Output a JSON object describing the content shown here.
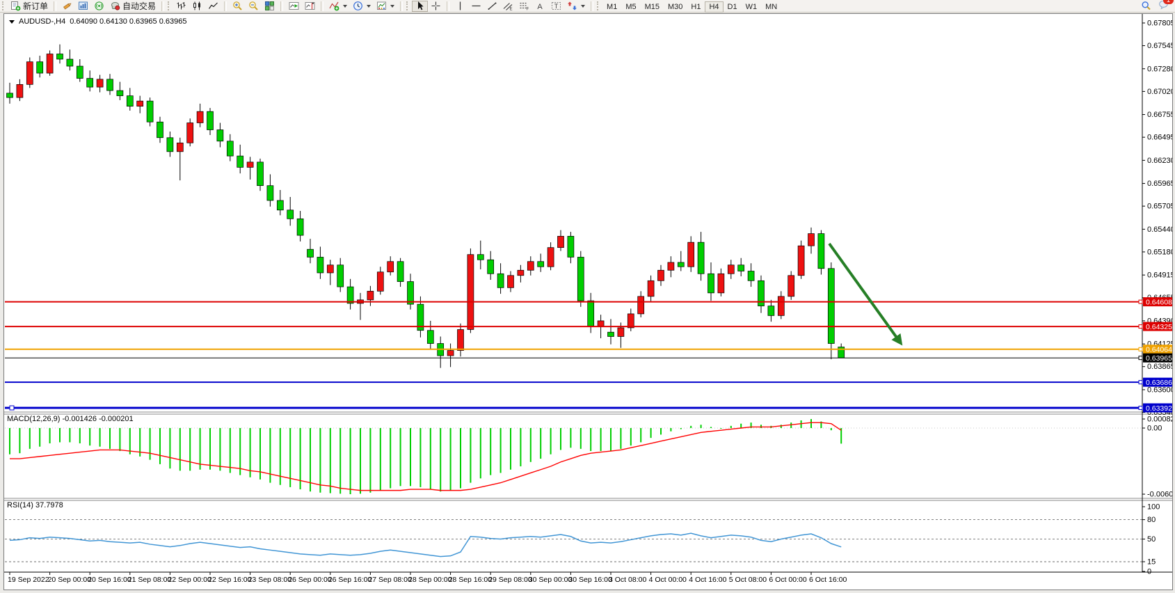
{
  "toolbar": {
    "new_order_label": "新订单",
    "autotrading_label": "自动交易",
    "timeframes": [
      "M1",
      "M5",
      "M15",
      "M30",
      "H1",
      "H4",
      "D1",
      "W1",
      "MN"
    ],
    "active_timeframe": "H4",
    "chat_badge": "1"
  },
  "chart_header": {
    "symbol": "AUDUSD-,H4",
    "ohlc": "0.64090 0.64130 0.63965 0.63965"
  },
  "price_axis": {
    "ticks": [
      "0.67805",
      "0.67545",
      "0.67280",
      "0.67020",
      "0.66755",
      "0.66495",
      "0.66230",
      "0.65965",
      "0.65705",
      "0.65440",
      "0.65180",
      "0.64915",
      "0.64655",
      "0.64390",
      "0.64125",
      "0.63865",
      "0.63600",
      "0.63340"
    ],
    "badges": [
      {
        "label": "0.64608",
        "price": 0.64608,
        "color": "#dd0000"
      },
      {
        "label": "0.64325",
        "price": 0.64325,
        "color": "#dd0000"
      },
      {
        "label": "0.64064",
        "price": 0.64064,
        "color": "#f0a200"
      },
      {
        "label": "0.63965",
        "price": 0.63965,
        "color": "#000000"
      },
      {
        "label": "0.63686",
        "price": 0.63686,
        "color": "#0000cc"
      },
      {
        "label": "0.63392",
        "price": 0.63392,
        "color": "#0000cc"
      }
    ]
  },
  "hlines": [
    {
      "price": 0.64608,
      "color": "#dd0000",
      "width": 2,
      "handle": false
    },
    {
      "price": 0.64325,
      "color": "#dd0000",
      "width": 2,
      "handle": false
    },
    {
      "price": 0.64064,
      "color": "#f0a200",
      "width": 2,
      "handle": false
    },
    {
      "price": 0.63965,
      "color": "#000000",
      "width": 1,
      "handle": false
    },
    {
      "price": 0.63686,
      "color": "#0000cc",
      "width": 2,
      "handle": false
    },
    {
      "price": 0.63392,
      "color": "#0000cc",
      "width": 3,
      "handle": true
    }
  ],
  "time_axis": [
    "19 Sep 2022",
    "20 Sep 00:00",
    "20 Sep 16:00",
    "21 Sep 08:00",
    "22 Sep 00:00",
    "22 Sep 16:00",
    "23 Sep 08:00",
    "26 Sep 00:00",
    "26 Sep 16:00",
    "27 Sep 08:00",
    "28 Sep 00:00",
    "28 Sep 16:00",
    "29 Sep 08:00",
    "30 Sep 00:00",
    "30 Sep 16:00",
    "3 Oct 08:00",
    "4 Oct 00:00",
    "4 Oct 16:00",
    "5 Oct 08:00",
    "6 Oct 00:00",
    "6 Oct 16:00"
  ],
  "indicators": {
    "macd": {
      "name": "MACD(12,26,9)",
      "values_text": "-0.001426 -0.000201",
      "axis_labels": [
        "0.00082",
        "0.00",
        "-0.006044"
      ]
    },
    "rsi": {
      "name": "RSI(14)",
      "value_text": "37.7978",
      "axis_labels": [
        "100",
        "80",
        "50",
        "15",
        "0"
      ],
      "dashed_levels": [
        80,
        50,
        15
      ]
    }
  },
  "annotation_arrow": {
    "color": "#267f26"
  },
  "colors": {
    "bull": "#ee1111",
    "bear": "#00ce00",
    "wick": "#000000",
    "macd_hist": "#00ce00",
    "macd_signal": "#ff0000",
    "rsi_line": "#4095d5"
  },
  "chart_data": {
    "type": "candlestick",
    "symbol": "AUDUSD",
    "period": "H4",
    "ohlc": [
      [
        0.67,
        0.6712,
        0.6688,
        0.6695
      ],
      [
        0.6695,
        0.6716,
        0.6691,
        0.671
      ],
      [
        0.671,
        0.6741,
        0.6706,
        0.6736
      ],
      [
        0.6736,
        0.6743,
        0.6718,
        0.6723
      ],
      [
        0.6723,
        0.6749,
        0.672,
        0.6745
      ],
      [
        0.6745,
        0.6756,
        0.6734,
        0.6739
      ],
      [
        0.6739,
        0.675,
        0.6726,
        0.6731
      ],
      [
        0.6731,
        0.6739,
        0.6713,
        0.6717
      ],
      [
        0.6717,
        0.6726,
        0.6702,
        0.6707
      ],
      [
        0.6707,
        0.6721,
        0.6701,
        0.6716
      ],
      [
        0.6716,
        0.6722,
        0.6698,
        0.6703
      ],
      [
        0.6703,
        0.6713,
        0.6692,
        0.6697
      ],
      [
        0.6697,
        0.6706,
        0.668,
        0.6685
      ],
      [
        0.6685,
        0.6697,
        0.6677,
        0.6691
      ],
      [
        0.6691,
        0.6695,
        0.6662,
        0.6667
      ],
      [
        0.6667,
        0.6673,
        0.6643,
        0.6649
      ],
      [
        0.6649,
        0.6656,
        0.6627,
        0.6633
      ],
      [
        0.6633,
        0.6649,
        0.66,
        0.6643
      ],
      [
        0.6643,
        0.6671,
        0.6639,
        0.6666
      ],
      [
        0.6666,
        0.6688,
        0.6661,
        0.6679
      ],
      [
        0.6679,
        0.6683,
        0.6652,
        0.6658
      ],
      [
        0.6658,
        0.6666,
        0.6638,
        0.6645
      ],
      [
        0.6645,
        0.6653,
        0.6622,
        0.6628
      ],
      [
        0.6628,
        0.6641,
        0.6608,
        0.6615
      ],
      [
        0.6615,
        0.6627,
        0.6601,
        0.6621
      ],
      [
        0.6621,
        0.6625,
        0.6588,
        0.6594
      ],
      [
        0.6594,
        0.6607,
        0.657,
        0.6577
      ],
      [
        0.6577,
        0.6589,
        0.656,
        0.6566
      ],
      [
        0.6566,
        0.6581,
        0.6548,
        0.6556
      ],
      [
        0.6556,
        0.6565,
        0.653,
        0.6537
      ],
      [
        0.6521,
        0.6533,
        0.6505,
        0.6512
      ],
      [
        0.6512,
        0.6524,
        0.6487,
        0.6494
      ],
      [
        0.6494,
        0.6509,
        0.648,
        0.6503
      ],
      [
        0.6503,
        0.6511,
        0.6472,
        0.6478
      ],
      [
        0.6478,
        0.6487,
        0.6452,
        0.6459
      ],
      [
        0.6459,
        0.6471,
        0.644,
        0.6463
      ],
      [
        0.6463,
        0.6479,
        0.6456,
        0.6473
      ],
      [
        0.6473,
        0.6501,
        0.6469,
        0.6495
      ],
      [
        0.6495,
        0.6513,
        0.6491,
        0.6507
      ],
      [
        0.6507,
        0.6511,
        0.6478,
        0.6484
      ],
      [
        0.6484,
        0.6493,
        0.6452,
        0.6458
      ],
      [
        0.6458,
        0.6467,
        0.642,
        0.6428
      ],
      [
        0.6428,
        0.6439,
        0.6406,
        0.6413
      ],
      [
        0.6413,
        0.6421,
        0.6385,
        0.6399
      ],
      [
        0.6399,
        0.6413,
        0.6386,
        0.6405
      ],
      [
        0.6405,
        0.6436,
        0.6398,
        0.6429
      ],
      [
        0.6429,
        0.6522,
        0.6425,
        0.6515
      ],
      [
        0.6515,
        0.6531,
        0.6498,
        0.6509
      ],
      [
        0.6509,
        0.6519,
        0.6486,
        0.6493
      ],
      [
        0.6493,
        0.6505,
        0.647,
        0.6477
      ],
      [
        0.6477,
        0.6496,
        0.6472,
        0.6491
      ],
      [
        0.6491,
        0.6503,
        0.6483,
        0.6497
      ],
      [
        0.6497,
        0.6513,
        0.6491,
        0.6507
      ],
      [
        0.6507,
        0.6516,
        0.6495,
        0.6501
      ],
      [
        0.6501,
        0.6529,
        0.6497,
        0.6523
      ],
      [
        0.6523,
        0.6543,
        0.6519,
        0.6536
      ],
      [
        0.6536,
        0.6541,
        0.6505,
        0.6512
      ],
      [
        0.6512,
        0.6519,
        0.6455,
        0.6462
      ],
      [
        0.6462,
        0.6471,
        0.6425,
        0.6433
      ],
      [
        0.6433,
        0.6446,
        0.6419,
        0.6439
      ],
      [
        0.6426,
        0.6441,
        0.6412,
        0.6421
      ],
      [
        0.6421,
        0.6437,
        0.6408,
        0.6431
      ],
      [
        0.6431,
        0.6453,
        0.6427,
        0.6447
      ],
      [
        0.6447,
        0.6473,
        0.6443,
        0.6467
      ],
      [
        0.6467,
        0.6491,
        0.6461,
        0.6485
      ],
      [
        0.6485,
        0.6503,
        0.6479,
        0.6497
      ],
      [
        0.6497,
        0.6513,
        0.6489,
        0.6506
      ],
      [
        0.6506,
        0.6519,
        0.6496,
        0.6501
      ],
      [
        0.6501,
        0.6536,
        0.6495,
        0.6529
      ],
      [
        0.6529,
        0.6541,
        0.6485,
        0.6493
      ],
      [
        0.6493,
        0.6506,
        0.6462,
        0.6471
      ],
      [
        0.6471,
        0.6499,
        0.6467,
        0.6493
      ],
      [
        0.6493,
        0.6509,
        0.6487,
        0.6503
      ],
      [
        0.6503,
        0.6511,
        0.649,
        0.6496
      ],
      [
        0.6496,
        0.6505,
        0.6478,
        0.6485
      ],
      [
        0.6485,
        0.6491,
        0.6448,
        0.6456
      ],
      [
        0.6456,
        0.6463,
        0.6438,
        0.6445
      ],
      [
        0.6445,
        0.6473,
        0.6441,
        0.6467
      ],
      [
        0.6467,
        0.6496,
        0.6463,
        0.6491
      ],
      [
        0.6491,
        0.6531,
        0.6487,
        0.6525
      ],
      [
        0.6525,
        0.6546,
        0.6516,
        0.6539
      ],
      [
        0.6539,
        0.6543,
        0.6492,
        0.6499
      ],
      [
        0.6499,
        0.6506,
        0.6395,
        0.6413
      ],
      [
        0.6409,
        0.6413,
        0.63965,
        0.63965
      ]
    ],
    "macd_histogram": [
      -0.0024,
      -0.0023,
      -0.0019,
      -0.0017,
      -0.0014,
      -0.0013,
      -0.0013,
      -0.0014,
      -0.0016,
      -0.0017,
      -0.0019,
      -0.0021,
      -0.0024,
      -0.0026,
      -0.0029,
      -0.0033,
      -0.0037,
      -0.0039,
      -0.0039,
      -0.0038,
      -0.0038,
      -0.0039,
      -0.0041,
      -0.0043,
      -0.0045,
      -0.0047,
      -0.005,
      -0.0052,
      -0.0054,
      -0.0056,
      -0.0058,
      -0.0059,
      -0.00595,
      -0.006,
      -0.006044,
      -0.006,
      -0.0059,
      -0.0057,
      -0.0055,
      -0.0053,
      -0.0053,
      -0.0054,
      -0.0056,
      -0.0058,
      -0.0057,
      -0.0055,
      -0.005,
      -0.0046,
      -0.0043,
      -0.0041,
      -0.0038,
      -0.0035,
      -0.0031,
      -0.0028,
      -0.0024,
      -0.002,
      -0.0018,
      -0.0019,
      -0.0021,
      -0.0021,
      -0.0021,
      -0.0019,
      -0.0016,
      -0.0013,
      -0.0009,
      -0.0006,
      -0.0003,
      -0.0001,
      0.0002,
      0.0003,
      0.0001,
      0.0,
      0.0002,
      0.0004,
      0.0005,
      0.0003,
      0.0002,
      0.0003,
      0.0005,
      0.0007,
      0.00082,
      0.0006,
      -0.0002,
      -0.001426
    ],
    "macd_signal": [
      -0.0028,
      -0.0028,
      -0.0027,
      -0.0026,
      -0.0025,
      -0.0024,
      -0.0023,
      -0.0022,
      -0.0021,
      -0.002,
      -0.002,
      -0.002,
      -0.0021,
      -0.0022,
      -0.0023,
      -0.0025,
      -0.0027,
      -0.0029,
      -0.0031,
      -0.0033,
      -0.0034,
      -0.0035,
      -0.0036,
      -0.0037,
      -0.0039,
      -0.004,
      -0.0042,
      -0.0044,
      -0.0046,
      -0.0048,
      -0.005,
      -0.0052,
      -0.0053,
      -0.0055,
      -0.0056,
      -0.0057,
      -0.0057,
      -0.0057,
      -0.0057,
      -0.0057,
      -0.0056,
      -0.0056,
      -0.0056,
      -0.0057,
      -0.0057,
      -0.0057,
      -0.0056,
      -0.0054,
      -0.0052,
      -0.005,
      -0.0047,
      -0.0044,
      -0.0041,
      -0.0038,
      -0.0035,
      -0.0031,
      -0.0028,
      -0.0025,
      -0.0023,
      -0.0022,
      -0.0021,
      -0.002,
      -0.0018,
      -0.0016,
      -0.0014,
      -0.0012,
      -0.001,
      -0.0008,
      -0.0006,
      -0.0004,
      -0.0003,
      -0.0002,
      -0.0001,
      0.0,
      0.0001,
      0.0001,
      0.0001,
      0.0002,
      0.0003,
      0.0004,
      0.0005,
      0.0005,
      0.0004,
      -0.000201
    ],
    "rsi": [
      48,
      49,
      52,
      51,
      53,
      52,
      51,
      49,
      47,
      48,
      46,
      45,
      44,
      45,
      42,
      40,
      38,
      40,
      43,
      45,
      43,
      41,
      39,
      37,
      38,
      35,
      33,
      31,
      29,
      27,
      26,
      25,
      27,
      26,
      25,
      26,
      28,
      31,
      33,
      31,
      29,
      27,
      25,
      23,
      24,
      30,
      54,
      53,
      51,
      50,
      52,
      53,
      54,
      53,
      55,
      57,
      54,
      47,
      44,
      45,
      44,
      46,
      49,
      52,
      55,
      57,
      58,
      56,
      59,
      55,
      52,
      54,
      56,
      55,
      53,
      48,
      46,
      50,
      53,
      56,
      58,
      52,
      43,
      37.7978
    ]
  }
}
